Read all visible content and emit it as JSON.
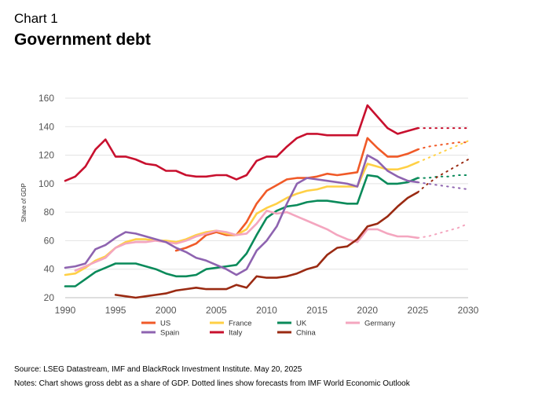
{
  "header": {
    "chart_label": "Chart 1",
    "title": "Government debt"
  },
  "footer": {
    "source": "Source: LSEG Datastream, IMF and BlackRock Investment Institute. May 20, 2025",
    "notes": "Notes: Chart shows gross debt as a share of GDP. Dotted lines show forecasts from IMF World Economic Outlook"
  },
  "chart_data": {
    "type": "line",
    "title": "Government debt",
    "xlabel": "",
    "ylabel": "Share of GDP",
    "xlim": [
      1990,
      2030
    ],
    "ylim": [
      20,
      160
    ],
    "x_ticks": [
      1990,
      1995,
      2000,
      2005,
      2010,
      2015,
      2020,
      2025,
      2030
    ],
    "y_ticks": [
      20,
      40,
      60,
      80,
      100,
      120,
      140,
      160
    ],
    "grid": true,
    "legend_position": "bottom",
    "forecast_style": "dotted",
    "series": [
      {
        "name": "US",
        "color": "#f05a28",
        "x": [
          2001,
          2002,
          2003,
          2004,
          2005,
          2006,
          2007,
          2008,
          2009,
          2010,
          2011,
          2012,
          2013,
          2014,
          2015,
          2016,
          2017,
          2018,
          2019,
          2020,
          2021,
          2022,
          2023,
          2024,
          2025
        ],
        "values": [
          53,
          55,
          58,
          64,
          66,
          64,
          64,
          73,
          86,
          95,
          99,
          103,
          104,
          104,
          105,
          107,
          106,
          107,
          108,
          132,
          125,
          119,
          119,
          121,
          124
        ],
        "forecast_x": [
          2025,
          2026,
          2027,
          2028,
          2029,
          2030
        ],
        "forecast_values": [
          124,
          126,
          127,
          128,
          129,
          129
        ]
      },
      {
        "name": "France",
        "color": "#ffd045",
        "x": [
          1990,
          1991,
          1992,
          1993,
          1994,
          1995,
          1996,
          1997,
          1998,
          1999,
          2000,
          2001,
          2002,
          2003,
          2004,
          2005,
          2006,
          2007,
          2008,
          2009,
          2010,
          2011,
          2012,
          2013,
          2014,
          2015,
          2016,
          2017,
          2018,
          2019,
          2020,
          2021,
          2022,
          2023,
          2024,
          2025
        ],
        "values": [
          36,
          37,
          41,
          46,
          49,
          55,
          59,
          61,
          61,
          60,
          60,
          59,
          61,
          64,
          66,
          67,
          65,
          64,
          68,
          79,
          83,
          86,
          90,
          93,
          95,
          96,
          98,
          98,
          98,
          98,
          114,
          112,
          110,
          110,
          112,
          115
        ],
        "forecast_x": [
          2025,
          2026,
          2027,
          2028,
          2029,
          2030
        ],
        "forecast_values": [
          115,
          118,
          121,
          124,
          127,
          130
        ]
      },
      {
        "name": "UK",
        "color": "#0a8a5a",
        "x": [
          1990,
          1991,
          1992,
          1993,
          1994,
          1995,
          1996,
          1997,
          1998,
          1999,
          2000,
          2001,
          2002,
          2003,
          2004,
          2005,
          2006,
          2007,
          2008,
          2009,
          2010,
          2011,
          2012,
          2013,
          2014,
          2015,
          2016,
          2017,
          2018,
          2019,
          2020,
          2021,
          2022,
          2023,
          2024,
          2025
        ],
        "values": [
          28,
          28,
          33,
          38,
          41,
          44,
          44,
          44,
          42,
          40,
          37,
          35,
          35,
          36,
          40,
          41,
          42,
          43,
          51,
          64,
          76,
          81,
          84,
          85,
          87,
          88,
          88,
          87,
          86,
          86,
          106,
          105,
          100,
          100,
          101,
          104
        ],
        "forecast_x": [
          2025,
          2026,
          2027,
          2028,
          2029,
          2030
        ],
        "forecast_values": [
          104,
          104,
          105,
          105,
          106,
          106
        ]
      },
      {
        "name": "Germany",
        "color": "#f4a6bf",
        "x": [
          1991,
          1992,
          1993,
          1994,
          1995,
          1996,
          1997,
          1998,
          1999,
          2000,
          2001,
          2002,
          2003,
          2004,
          2005,
          2006,
          2007,
          2008,
          2009,
          2010,
          2011,
          2012,
          2013,
          2014,
          2015,
          2016,
          2017,
          2018,
          2019,
          2020,
          2021,
          2022,
          2023,
          2024,
          2025
        ],
        "values": [
          39,
          42,
          45,
          48,
          55,
          58,
          59,
          59,
          60,
          59,
          58,
          60,
          63,
          65,
          67,
          66,
          64,
          65,
          72,
          81,
          79,
          80,
          77,
          74,
          71,
          68,
          64,
          61,
          59,
          68,
          68,
          65,
          63,
          63,
          62
        ],
        "forecast_x": [
          2025,
          2026,
          2027,
          2028,
          2029,
          2030
        ],
        "forecast_values": [
          62,
          63,
          65,
          67,
          69,
          72
        ]
      },
      {
        "name": "Spain",
        "color": "#8e63b0",
        "x": [
          1990,
          1991,
          1992,
          1993,
          1994,
          1995,
          1996,
          1997,
          1998,
          1999,
          2000,
          2001,
          2002,
          2003,
          2004,
          2005,
          2006,
          2007,
          2008,
          2009,
          2010,
          2011,
          2012,
          2013,
          2014,
          2015,
          2016,
          2017,
          2018,
          2019,
          2020,
          2021,
          2022,
          2023,
          2024,
          2025
        ],
        "values": [
          41,
          42,
          44,
          54,
          57,
          62,
          66,
          65,
          63,
          61,
          59,
          55,
          52,
          48,
          46,
          43,
          40,
          36,
          40,
          53,
          60,
          70,
          86,
          100,
          104,
          103,
          102,
          101,
          100,
          98,
          120,
          116,
          109,
          105,
          102,
          101
        ],
        "forecast_x": [
          2025,
          2026,
          2027,
          2028,
          2029,
          2030
        ],
        "forecast_values": [
          101,
          100,
          99,
          98,
          97,
          96
        ]
      },
      {
        "name": "Italy",
        "color": "#c8102e",
        "x": [
          1990,
          1991,
          1992,
          1993,
          1994,
          1995,
          1996,
          1997,
          1998,
          1999,
          2000,
          2001,
          2002,
          2003,
          2004,
          2005,
          2006,
          2007,
          2008,
          2009,
          2010,
          2011,
          2012,
          2013,
          2014,
          2015,
          2016,
          2017,
          2018,
          2019,
          2020,
          2021,
          2022,
          2023,
          2024,
          2025
        ],
        "values": [
          102,
          105,
          112,
          124,
          131,
          119,
          119,
          117,
          114,
          113,
          109,
          109,
          106,
          105,
          105,
          106,
          106,
          103,
          106,
          116,
          119,
          119,
          126,
          132,
          135,
          135,
          134,
          134,
          134,
          134,
          155,
          147,
          139,
          135,
          137,
          139
        ],
        "forecast_x": [
          2025,
          2026,
          2027,
          2028,
          2029,
          2030
        ],
        "forecast_values": [
          139,
          139,
          139,
          139,
          139,
          139
        ]
      },
      {
        "name": "China",
        "color": "#9a2a12",
        "x": [
          1995,
          1996,
          1997,
          1998,
          1999,
          2000,
          2001,
          2002,
          2003,
          2004,
          2005,
          2006,
          2007,
          2008,
          2009,
          2010,
          2011,
          2012,
          2013,
          2014,
          2015,
          2016,
          2017,
          2018,
          2019,
          2020,
          2021,
          2022,
          2023,
          2024,
          2025
        ],
        "values": [
          22,
          21,
          20,
          21,
          22,
          23,
          25,
          26,
          27,
          26,
          26,
          26,
          29,
          27,
          35,
          34,
          34,
          35,
          37,
          40,
          42,
          50,
          55,
          56,
          61,
          70,
          72,
          77,
          84,
          90,
          94
        ],
        "forecast_x": [
          2025,
          2026,
          2027,
          2028,
          2029,
          2030
        ],
        "forecast_values": [
          94,
          100,
          105,
          109,
          113,
          117
        ]
      }
    ]
  }
}
